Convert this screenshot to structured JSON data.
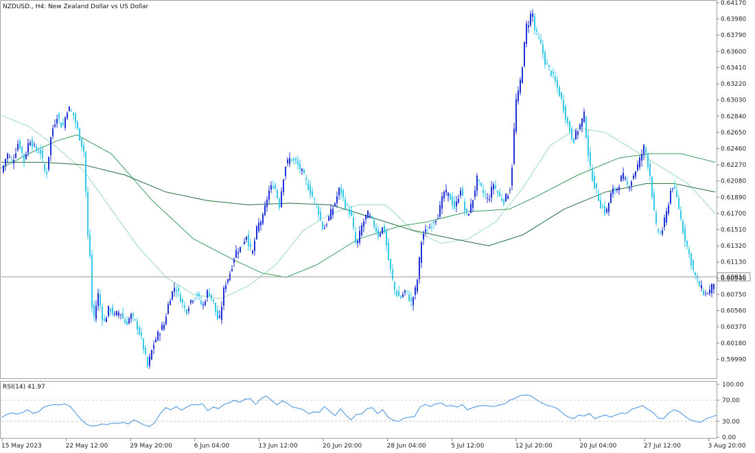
{
  "chart_data": {
    "type": "candlestick",
    "title": "NZDUSD., H4:  New Zealand Dollar vs US Dollar",
    "symbol": "NZDUSD.",
    "timeframe": "H4",
    "current_price": "0.60956",
    "price_axis": {
      "ylim": [
        0.598,
        0.6417
      ],
      "ticks": [
        "0.64170",
        "0.63980",
        "0.63790",
        "0.63600",
        "0.63410",
        "0.63220",
        "0.63030",
        "0.62840",
        "0.62650",
        "0.62460",
        "0.62270",
        "0.62080",
        "0.61890",
        "0.61700",
        "0.61510",
        "0.61320",
        "0.61130",
        "0.60940",
        "0.60750",
        "0.60560",
        "0.60370",
        "0.60180",
        "0.59990"
      ]
    },
    "time_labels": [
      "15 May 2023",
      "22 May 12:00",
      "29 May 20:00",
      "6 Jun 04:00",
      "13 Jun 12:00",
      "20 Jun 20:00",
      "28 Jun 04:00",
      "5 Jul 12:00",
      "12 Jul 20:00",
      "20 Jul 04:00",
      "27 Jul 12:00",
      "3 Aug 20:00"
    ],
    "price_path": [
      [
        0,
        0.6218
      ],
      [
        8,
        0.624
      ],
      [
        16,
        0.623
      ],
      [
        25,
        0.6255
      ],
      [
        33,
        0.6232
      ],
      [
        41,
        0.6258
      ],
      [
        49,
        0.6245
      ],
      [
        57,
        0.6242
      ],
      [
        65,
        0.6212
      ],
      [
        73,
        0.6265
      ],
      [
        81,
        0.6285
      ],
      [
        89,
        0.627
      ],
      [
        97,
        0.6295
      ],
      [
        105,
        0.6285
      ],
      [
        113,
        0.6262
      ],
      [
        121,
        0.624
      ],
      [
        125,
        0.615
      ],
      [
        129,
        0.612
      ],
      [
        133,
        0.604
      ],
      [
        141,
        0.6075
      ],
      [
        149,
        0.604
      ],
      [
        157,
        0.606
      ],
      [
        165,
        0.605
      ],
      [
        173,
        0.6055
      ],
      [
        181,
        0.604
      ],
      [
        189,
        0.605
      ],
      [
        197,
        0.604
      ],
      [
        205,
        0.602
      ],
      [
        213,
        0.599
      ],
      [
        221,
        0.6015
      ],
      [
        229,
        0.603
      ],
      [
        237,
        0.604
      ],
      [
        245,
        0.607
      ],
      [
        253,
        0.6085
      ],
      [
        261,
        0.607
      ],
      [
        269,
        0.6055
      ],
      [
        277,
        0.607
      ],
      [
        285,
        0.6075
      ],
      [
        293,
        0.606
      ],
      [
        301,
        0.608
      ],
      [
        309,
        0.6065
      ],
      [
        317,
        0.604
      ],
      [
        325,
        0.6085
      ],
      [
        333,
        0.61
      ],
      [
        341,
        0.6125
      ],
      [
        349,
        0.613
      ],
      [
        357,
        0.6145
      ],
      [
        365,
        0.612
      ],
      [
        373,
        0.6155
      ],
      [
        381,
        0.6165
      ],
      [
        389,
        0.6195
      ],
      [
        397,
        0.6205
      ],
      [
        405,
        0.618
      ],
      [
        413,
        0.6225
      ],
      [
        421,
        0.6235
      ],
      [
        429,
        0.623
      ],
      [
        437,
        0.622
      ],
      [
        445,
        0.6205
      ],
      [
        453,
        0.619
      ],
      [
        461,
        0.6175
      ],
      [
        469,
        0.615
      ],
      [
        477,
        0.6165
      ],
      [
        485,
        0.618
      ],
      [
        493,
        0.62
      ],
      [
        501,
        0.618
      ],
      [
        509,
        0.617
      ],
      [
        517,
        0.613
      ],
      [
        525,
        0.6155
      ],
      [
        533,
        0.617
      ],
      [
        541,
        0.616
      ],
      [
        549,
        0.6145
      ],
      [
        557,
        0.6155
      ],
      [
        565,
        0.611
      ],
      [
        573,
        0.608
      ],
      [
        581,
        0.607
      ],
      [
        589,
        0.608
      ],
      [
        597,
        0.6065
      ],
      [
        605,
        0.6085
      ],
      [
        613,
        0.6145
      ],
      [
        621,
        0.615
      ],
      [
        629,
        0.616
      ],
      [
        637,
        0.617
      ],
      [
        645,
        0.6195
      ],
      [
        653,
        0.619
      ],
      [
        661,
        0.6175
      ],
      [
        669,
        0.62
      ],
      [
        677,
        0.6165
      ],
      [
        685,
        0.618
      ],
      [
        693,
        0.621
      ],
      [
        701,
        0.6195
      ],
      [
        709,
        0.6185
      ],
      [
        717,
        0.6205
      ],
      [
        725,
        0.619
      ],
      [
        733,
        0.6185
      ],
      [
        741,
        0.62
      ],
      [
        745,
        0.6235
      ],
      [
        749,
        0.63
      ],
      [
        753,
        0.631
      ],
      [
        757,
        0.633
      ],
      [
        761,
        0.636
      ],
      [
        765,
        0.639
      ],
      [
        769,
        0.6395
      ],
      [
        773,
        0.641
      ],
      [
        777,
        0.6385
      ],
      [
        785,
        0.637
      ],
      [
        793,
        0.6345
      ],
      [
        801,
        0.6335
      ],
      [
        809,
        0.632
      ],
      [
        817,
        0.63
      ],
      [
        825,
        0.6275
      ],
      [
        833,
        0.6255
      ],
      [
        841,
        0.627
      ],
      [
        849,
        0.6285
      ],
      [
        857,
        0.6225
      ],
      [
        865,
        0.62
      ],
      [
        873,
        0.618
      ],
      [
        881,
        0.617
      ],
      [
        889,
        0.6195
      ],
      [
        897,
        0.62
      ],
      [
        905,
        0.6215
      ],
      [
        913,
        0.62
      ],
      [
        921,
        0.6215
      ],
      [
        929,
        0.623
      ],
      [
        937,
        0.625
      ],
      [
        945,
        0.6215
      ],
      [
        953,
        0.6155
      ],
      [
        961,
        0.6145
      ],
      [
        969,
        0.617
      ],
      [
        977,
        0.6205
      ],
      [
        985,
        0.6185
      ],
      [
        993,
        0.615
      ],
      [
        1001,
        0.6125
      ],
      [
        1009,
        0.61
      ],
      [
        1017,
        0.6085
      ],
      [
        1025,
        0.6075
      ],
      [
        1033,
        0.608
      ],
      [
        1041,
        0.6095
      ]
    ],
    "moving_averages": [
      {
        "color": "#9ad9bd",
        "points": [
          [
            0,
            0.6285
          ],
          [
            40,
            0.6272
          ],
          [
            80,
            0.6248
          ],
          [
            120,
            0.622
          ],
          [
            160,
            0.6175
          ],
          [
            200,
            0.613
          ],
          [
            240,
            0.6095
          ],
          [
            280,
            0.6075
          ],
          [
            320,
            0.607
          ],
          [
            360,
            0.6085
          ],
          [
            400,
            0.611
          ],
          [
            440,
            0.615
          ],
          [
            480,
            0.617
          ],
          [
            520,
            0.618
          ],
          [
            560,
            0.618
          ],
          [
            600,
            0.615
          ],
          [
            640,
            0.6135
          ],
          [
            680,
            0.614
          ],
          [
            720,
            0.616
          ],
          [
            760,
            0.62
          ],
          [
            800,
            0.625
          ],
          [
            840,
            0.627
          ],
          [
            880,
            0.6265
          ],
          [
            920,
            0.6245
          ],
          [
            960,
            0.6225
          ],
          [
            1000,
            0.6205
          ],
          [
            1040,
            0.617
          ]
        ]
      },
      {
        "color": "#3a9a5c",
        "points": [
          [
            0,
            0.6223
          ],
          [
            40,
            0.624
          ],
          [
            80,
            0.6255
          ],
          [
            110,
            0.6262
          ],
          [
            160,
            0.624
          ],
          [
            220,
            0.6185
          ],
          [
            280,
            0.614
          ],
          [
            340,
            0.6115
          ],
          [
            380,
            0.61
          ],
          [
            415,
            0.6095
          ],
          [
            460,
            0.611
          ],
          [
            520,
            0.614
          ],
          [
            580,
            0.6155
          ],
          [
            620,
            0.616
          ],
          [
            680,
            0.6172
          ],
          [
            740,
            0.6175
          ],
          [
            780,
            0.619
          ],
          [
            840,
            0.6215
          ],
          [
            900,
            0.6235
          ],
          [
            945,
            0.624
          ],
          [
            990,
            0.624
          ],
          [
            1040,
            0.623
          ]
        ]
      },
      {
        "color": "#1f6f3a",
        "points": [
          [
            0,
            0.623
          ],
          [
            60,
            0.623
          ],
          [
            120,
            0.6227
          ],
          [
            180,
            0.6215
          ],
          [
            240,
            0.6195
          ],
          [
            300,
            0.6185
          ],
          [
            360,
            0.618
          ],
          [
            420,
            0.6182
          ],
          [
            480,
            0.618
          ],
          [
            540,
            0.6165
          ],
          [
            600,
            0.615
          ],
          [
            660,
            0.614
          ],
          [
            710,
            0.6132
          ],
          [
            760,
            0.6145
          ],
          [
            820,
            0.6175
          ],
          [
            880,
            0.6195
          ],
          [
            940,
            0.6205
          ],
          [
            980,
            0.6205
          ],
          [
            1040,
            0.6195
          ]
        ]
      }
    ],
    "rsi": {
      "label": "RSI(14) 41.97",
      "ticks": [
        "100.00",
        "70.00",
        "30.00",
        "0.00"
      ],
      "levels": [
        70,
        30
      ],
      "color": "#3f8fe0",
      "values": [
        37,
        43,
        46,
        44,
        47,
        52,
        45,
        48,
        57,
        60,
        62,
        61,
        63,
        58,
        46,
        34,
        25,
        21,
        22,
        25,
        24,
        27,
        26,
        28,
        25,
        33,
        28,
        23,
        20,
        28,
        45,
        56,
        52,
        58,
        51,
        57,
        62,
        61,
        63,
        50,
        57,
        54,
        62,
        65,
        70,
        66,
        72,
        73,
        62,
        73,
        78,
        70,
        61,
        69,
        64,
        57,
        55,
        52,
        44,
        48,
        47,
        58,
        49,
        41,
        54,
        42,
        33,
        43,
        44,
        54,
        56,
        45,
        52,
        38,
        32,
        30,
        36,
        38,
        39,
        57,
        62,
        58,
        63,
        65,
        59,
        60,
        57,
        62,
        52,
        56,
        59,
        60,
        59,
        58,
        61,
        63,
        70,
        74,
        79,
        80,
        78,
        71,
        65,
        60,
        58,
        54,
        45,
        38,
        35,
        42,
        40,
        45,
        35,
        39,
        42,
        38,
        42,
        46,
        45,
        53,
        56,
        60,
        53,
        47,
        36,
        35,
        46,
        52,
        48,
        40,
        33,
        30,
        28,
        35,
        38,
        42
      ]
    }
  }
}
